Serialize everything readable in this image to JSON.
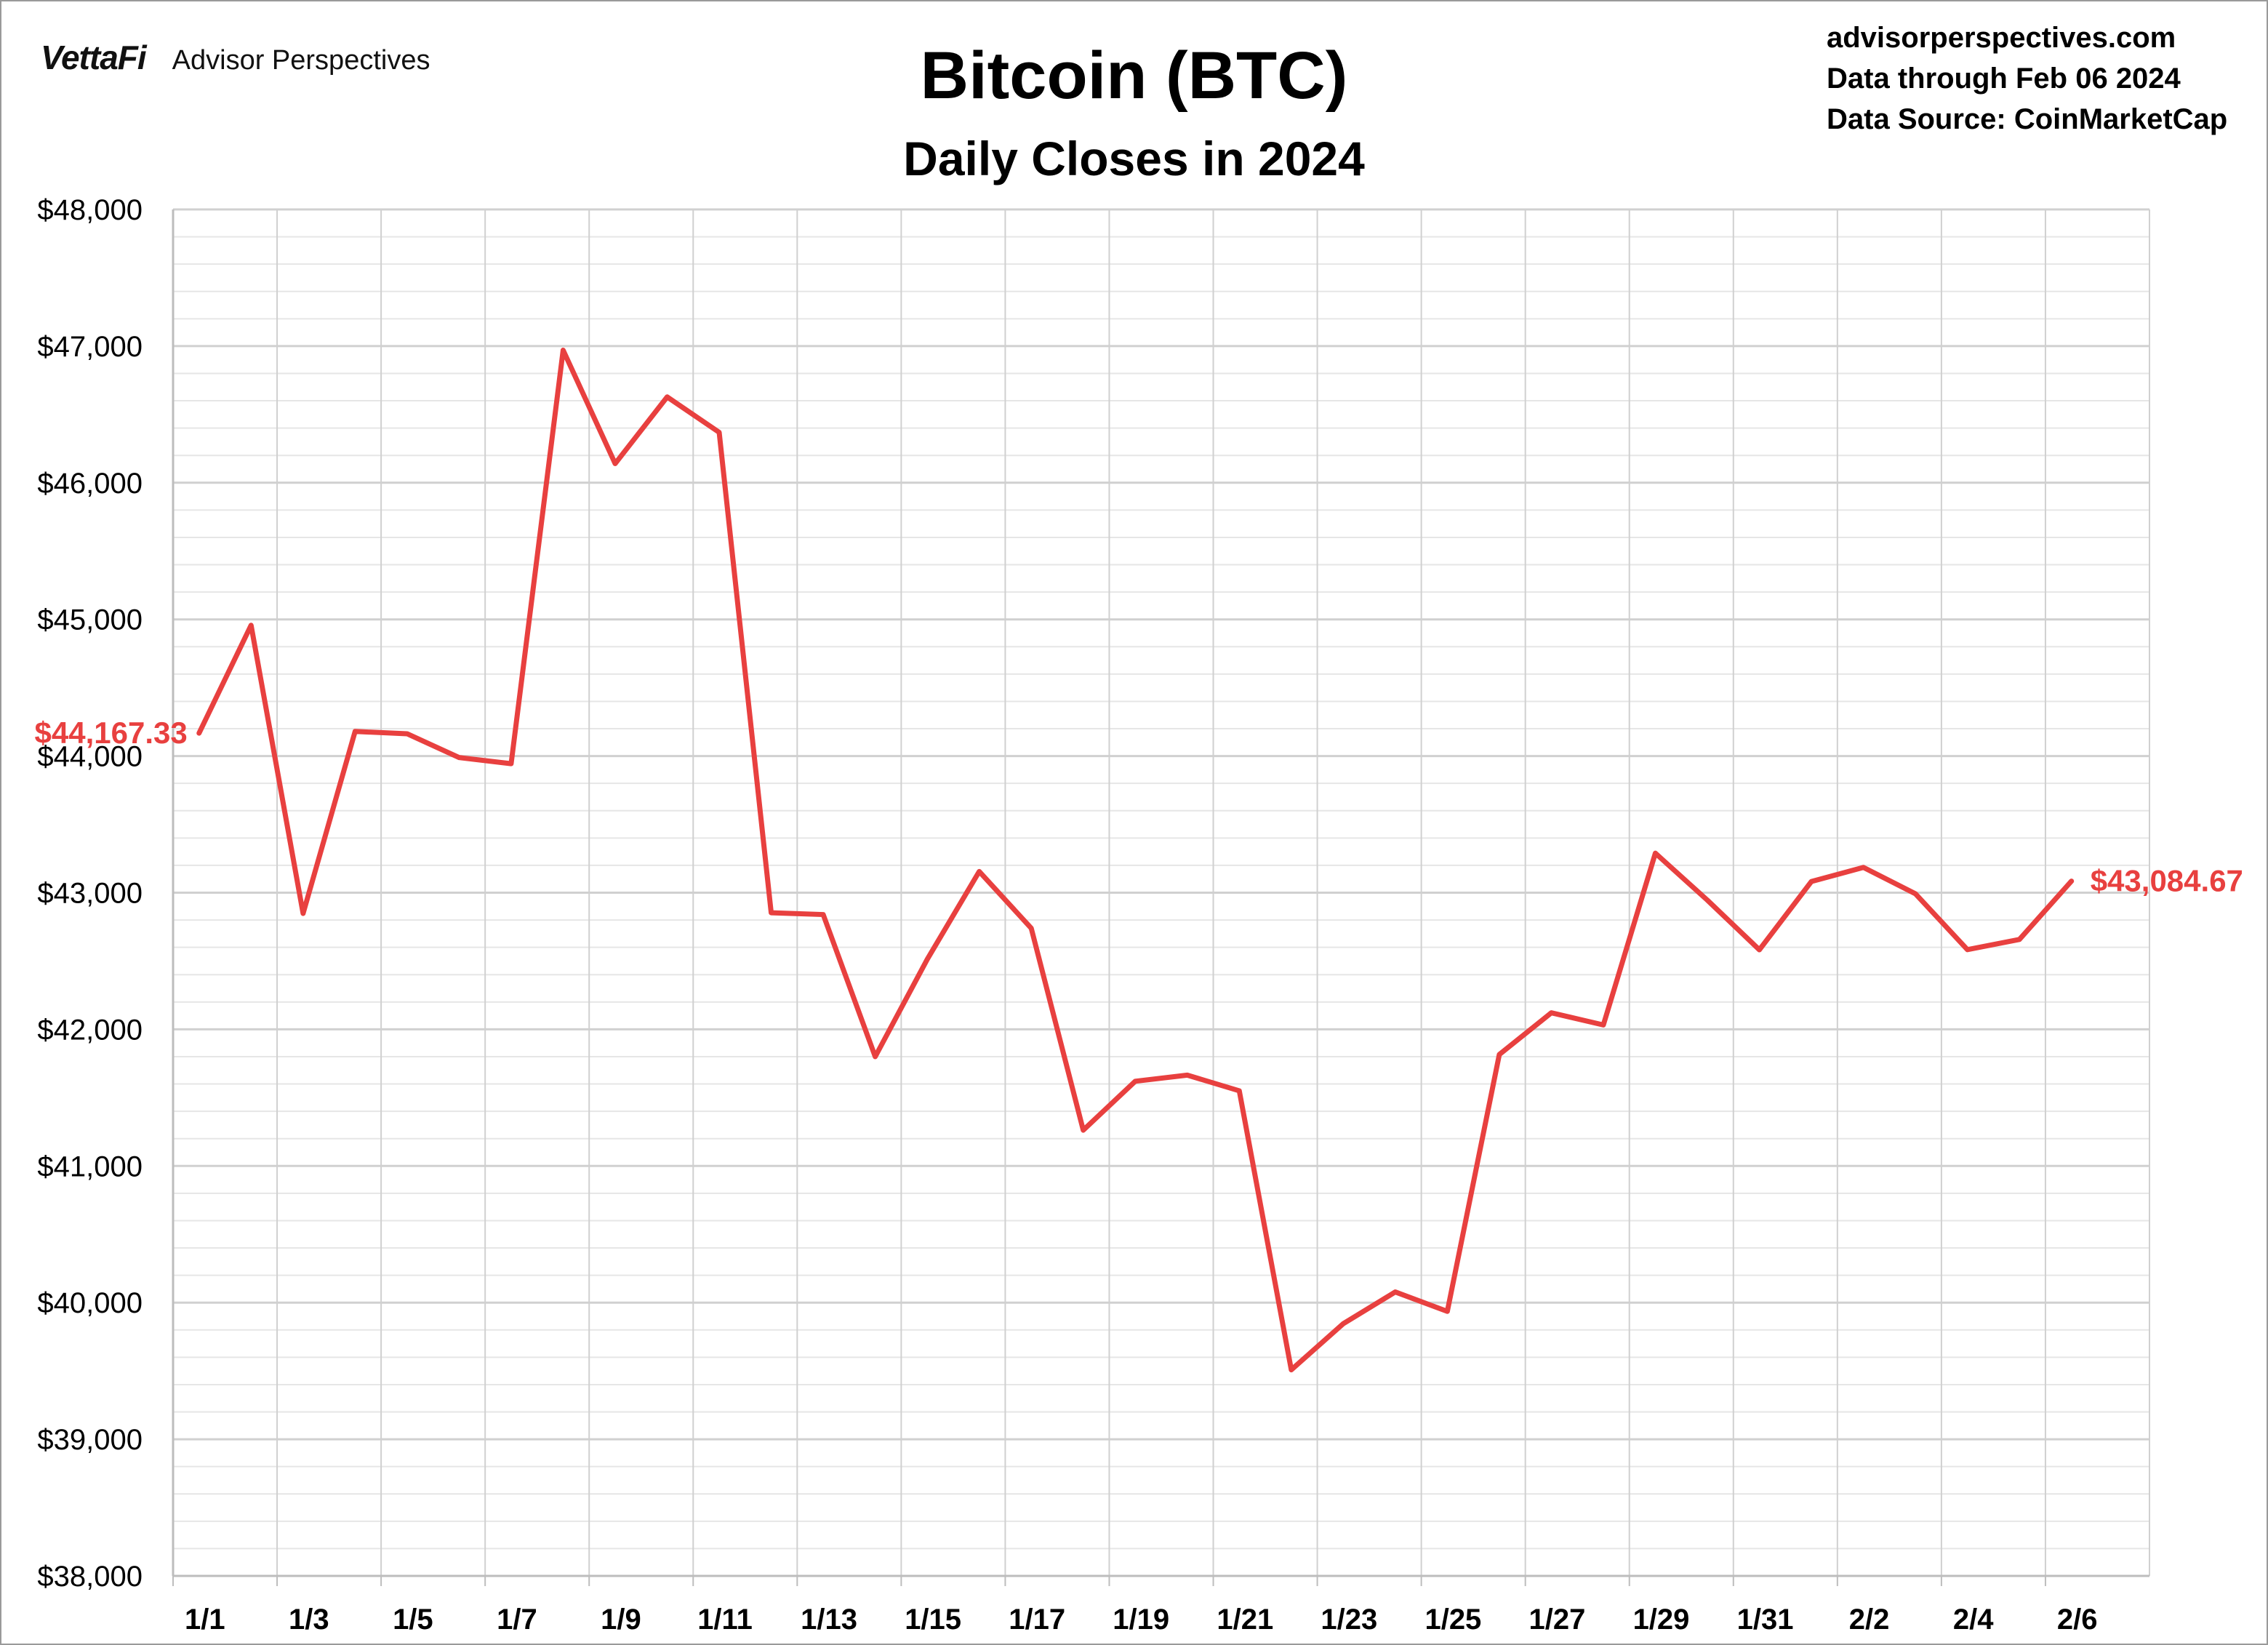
{
  "branding": {
    "logo": "VettaFi",
    "name": "Advisor Perspectives"
  },
  "meta": {
    "site": "advisorperspectives.com",
    "data_through": "Data through Feb 06 2024",
    "source": "Data Source: CoinMarketCap"
  },
  "colors": {
    "series": "#e8403f",
    "grid_major": "#d0d0d0",
    "grid_minor": "#e6e6e6",
    "axis": "#bdbdbd"
  },
  "chart_data": {
    "type": "line",
    "title": "Bitcoin (BTC)",
    "subtitle": "Daily Closes in 2024",
    "xlabel": "",
    "ylabel": "",
    "ylim": [
      38000,
      48000
    ],
    "yticks": [
      38000,
      39000,
      40000,
      41000,
      42000,
      43000,
      44000,
      45000,
      46000,
      47000,
      48000
    ],
    "ytick_labels": [
      "$38,000",
      "$39,000",
      "$40,000",
      "$41,000",
      "$42,000",
      "$43,000",
      "$44,000",
      "$45,000",
      "$46,000",
      "$47,000",
      "$48,000"
    ],
    "xtick_labels": [
      "1/1",
      "1/3",
      "1/5",
      "1/7",
      "1/9",
      "1/11",
      "1/13",
      "1/15",
      "1/17",
      "1/19",
      "1/21",
      "1/23",
      "1/25",
      "1/27",
      "1/29",
      "1/31",
      "2/2",
      "2/4",
      "2/6"
    ],
    "grid": true,
    "legend": "none",
    "series": [
      {
        "dates": [
          "1/1",
          "1/2",
          "1/3",
          "1/4",
          "1/5",
          "1/6",
          "1/7",
          "1/8",
          "1/9",
          "1/10",
          "1/11",
          "1/12",
          "1/13",
          "1/14",
          "1/15",
          "1/16",
          "1/17",
          "1/18",
          "1/19",
          "1/20",
          "1/21",
          "1/22",
          "1/23",
          "1/24",
          "1/25",
          "1/26",
          "1/27",
          "1/28",
          "1/29",
          "1/30",
          "1/31",
          "2/1",
          "2/2",
          "2/3",
          "2/4",
          "2/5",
          "2/6"
        ],
        "values": [
          44167.33,
          44957,
          42848,
          44180,
          44163,
          43989,
          43944,
          46970,
          46140,
          46628,
          46369,
          42853,
          42840,
          41800,
          42512,
          43155,
          42740,
          41262,
          41620,
          41665,
          41550,
          39508,
          39846,
          40078,
          39936,
          41816,
          42121,
          42032,
          43289,
          42945,
          42582,
          43082,
          43185,
          42992,
          42583,
          42658,
          43084.67
        ]
      }
    ],
    "annotations": [
      {
        "label": "$44,167.33",
        "date": "1/1",
        "value": 44167.33,
        "side": "left"
      },
      {
        "label": "$43,084.67",
        "date": "2/6",
        "value": 43084.67,
        "side": "right"
      }
    ]
  }
}
